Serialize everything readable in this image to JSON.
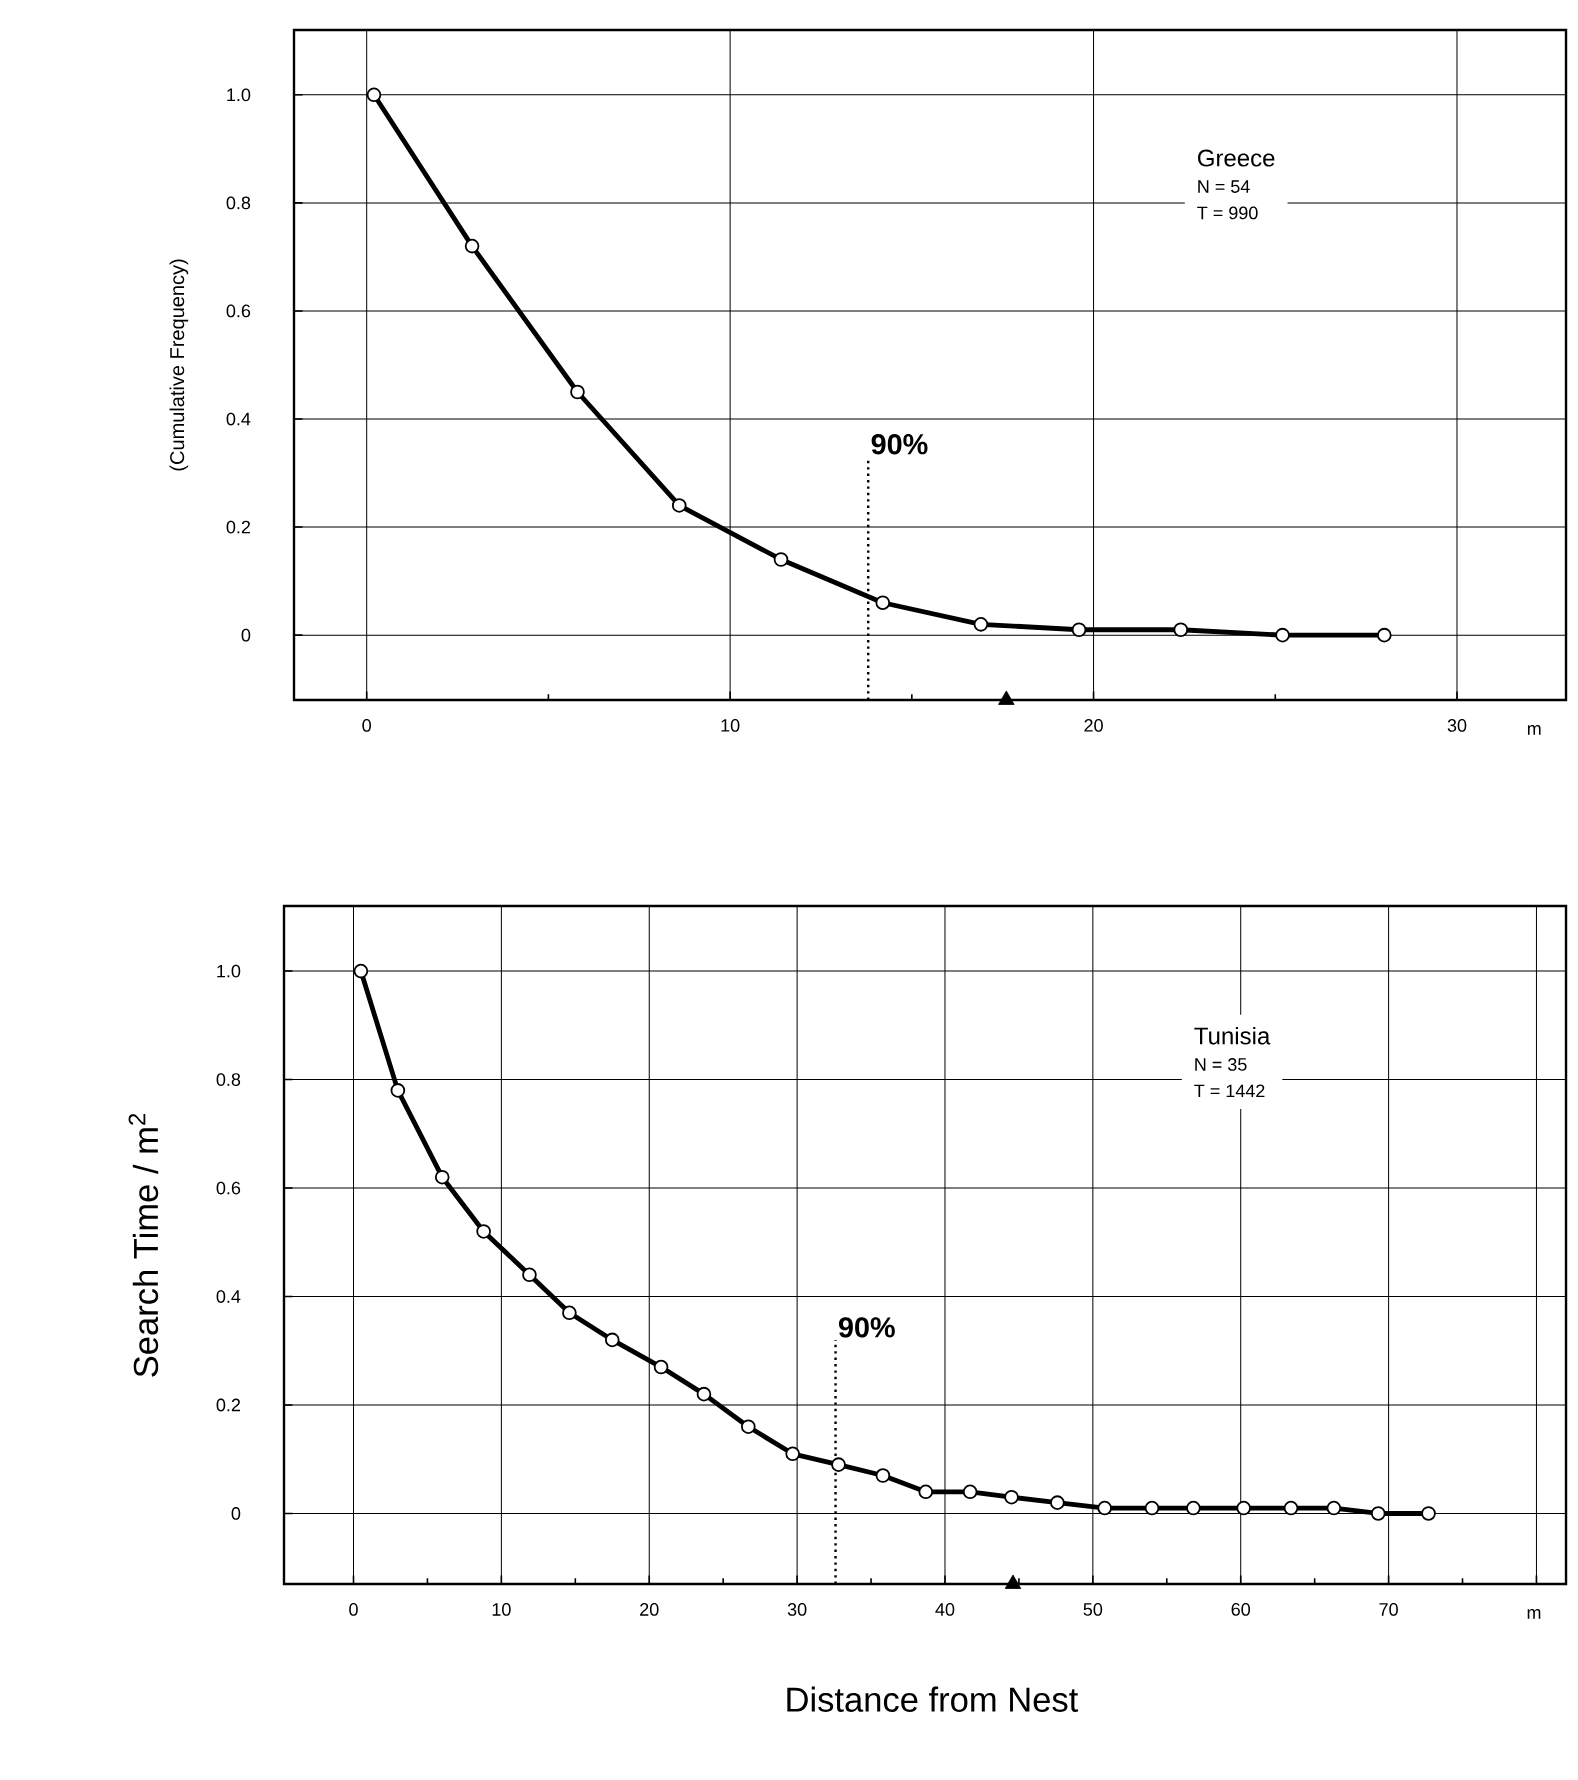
{
  "chart_data": [
    {
      "type": "line",
      "ylabel": "(Cumulative Frequency)",
      "xlabel": "m",
      "annotations": [
        "Greece",
        "N = 54",
        "T = 990",
        {
          "text": "90%",
          "x": 13.8,
          "y": 0.33
        }
      ],
      "series": [
        {
          "color": "#000000",
          "x": [
            0.2,
            2.9,
            5.8,
            8.6,
            11.4,
            14.2,
            16.9,
            19.6,
            22.4,
            25.2,
            28.0
          ],
          "values": [
            1.0,
            0.72,
            0.45,
            0.24,
            0.14,
            0.06,
            0.02,
            0.01,
            0.01,
            0.0,
            0.0
          ]
        },
        {
          "type": "scatter",
          "marker": "triangle",
          "color": "#000000",
          "x": [
            17.6
          ],
          "values": [
            -0.12
          ]
        }
      ],
      "marker": "circle",
      "grid": true,
      "xlim": [
        -2,
        33
      ],
      "ylim": [
        -0.12,
        1.12
      ],
      "xticks": [
        0,
        10,
        20,
        30
      ],
      "yticks": [
        0,
        0.2,
        0.4,
        0.6,
        0.8,
        {
          "value": 1.0,
          "label": "1.0"
        }
      ],
      "ref_lines": [
        {
          "axis": "x",
          "value": 13.8,
          "line_style": "dotted",
          "color": "#000000"
        }
      ]
    },
    {
      "type": "line",
      "ylabel": "Search Time / m$^{2}$",
      "xlabel": "m",
      "annotations": [
        "Tunisia",
        "N = 35",
        "T = 1442",
        "Distance from Nest",
        {
          "text": "90%",
          "x": 32.6,
          "y": 0.32
        }
      ],
      "series": [
        {
          "color": "#000000",
          "x": [
            0.5,
            3.0,
            6.0,
            8.8,
            11.9,
            14.6,
            17.5,
            20.8,
            23.7,
            26.7,
            29.7,
            32.8,
            35.8,
            38.7,
            41.7,
            44.5,
            47.6,
            50.8,
            54.0,
            56.8,
            60.2,
            63.4,
            66.3,
            69.3,
            72.7
          ],
          "values": [
            1.0,
            0.78,
            0.62,
            0.52,
            0.44,
            0.37,
            0.32,
            0.27,
            0.22,
            0.16,
            0.11,
            0.09,
            0.07,
            0.04,
            0.04,
            0.03,
            0.02,
            0.01,
            0.01,
            0.01,
            0.01,
            0.01,
            0.01,
            0.0,
            0.0
          ]
        },
        {
          "type": "scatter",
          "marker": "triangle",
          "color": "#000000",
          "x": [
            44.6
          ],
          "values": [
            -0.13
          ]
        }
      ],
      "marker": "circle",
      "grid": true,
      "xlim": [
        -4.7,
        82
      ],
      "ylim": [
        -0.13,
        1.12
      ],
      "xticks": [
        0,
        10,
        20,
        30,
        40,
        50,
        60,
        70,
        {
          "value": 80,
          "label": null
        }
      ],
      "yticks": [
        0,
        0.2,
        0.4,
        0.6,
        0.8,
        {
          "value": 1.0,
          "label": "1.0"
        }
      ],
      "ref_lines": [
        {
          "axis": "x",
          "value": 32.6,
          "line_style": "dotted",
          "color": "#000000"
        }
      ]
    }
  ]
}
